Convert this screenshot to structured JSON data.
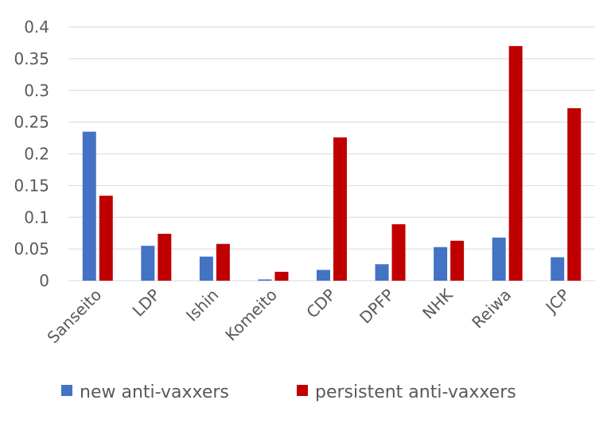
{
  "chart_data": {
    "type": "bar",
    "categories": [
      "Sanseito",
      "LDP",
      "Ishin",
      "Komeito",
      "CDP",
      "DPFP",
      "NHK",
      "Reiwa",
      "JCP"
    ],
    "series": [
      {
        "name": "new anti-vaxxers",
        "color": "#4472c4",
        "values": [
          0.235,
          0.055,
          0.038,
          0.002,
          0.017,
          0.026,
          0.053,
          0.068,
          0.037
        ]
      },
      {
        "name": "persistent anti-vaxxers",
        "color": "#c00000",
        "values": [
          0.134,
          0.074,
          0.058,
          0.014,
          0.226,
          0.089,
          0.063,
          0.37,
          0.272
        ]
      }
    ],
    "yticks": [
      "0",
      "0.05",
      "0.1",
      "0.15",
      "0.2",
      "0.25",
      "0.3",
      "0.35",
      "0.4"
    ],
    "ylim": [
      0,
      0.4
    ],
    "grid": true,
    "legend_position": "bottom"
  }
}
